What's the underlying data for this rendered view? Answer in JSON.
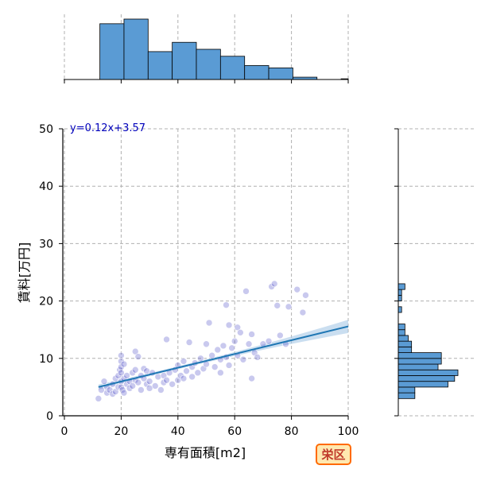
{
  "chart_data": {
    "type": "scatter",
    "xlabel": "専有面積[m2]",
    "ylabel": "賃料[万円]",
    "xlim": [
      0,
      100
    ],
    "ylim": [
      0,
      50
    ],
    "xticks": [
      "0",
      "20",
      "40",
      "60",
      "80",
      "100"
    ],
    "yticks": [
      "0",
      "10",
      "20",
      "30",
      "40",
      "50"
    ],
    "grid": true,
    "annotation": "y=0.12x+3.57",
    "badge": "栄区",
    "regression": {
      "slope": 0.12,
      "intercept": 3.57,
      "x_range": [
        12,
        100
      ]
    },
    "colors": {
      "point": "#4b4bc8",
      "line": "#1f77b4",
      "band": "#a6c8e6",
      "hist_fill": "#5a9bd4",
      "hist_edge": "#000000",
      "badge_fill": "#ffe8b0",
      "badge_edge": "#ff6a00"
    },
    "points": [
      [
        12,
        3
      ],
      [
        13,
        4.5
      ],
      [
        14,
        6
      ],
      [
        15,
        4
      ],
      [
        15,
        5
      ],
      [
        16,
        4.5
      ],
      [
        17,
        3.8
      ],
      [
        17,
        5.5
      ],
      [
        18,
        4.2
      ],
      [
        18,
        6.5
      ],
      [
        19,
        5
      ],
      [
        19,
        7
      ],
      [
        19.5,
        8
      ],
      [
        20,
        10.5
      ],
      [
        20,
        9.5
      ],
      [
        20,
        8.5
      ],
      [
        20,
        7.5
      ],
      [
        20,
        6
      ],
      [
        20,
        5
      ],
      [
        20.5,
        4.5
      ],
      [
        21,
        9
      ],
      [
        21,
        6.5
      ],
      [
        21,
        4
      ],
      [
        22,
        7
      ],
      [
        22,
        5.5
      ],
      [
        23,
        6
      ],
      [
        23,
        4.8
      ],
      [
        24,
        7.5
      ],
      [
        24,
        5.2
      ],
      [
        25,
        11.2
      ],
      [
        25,
        8
      ],
      [
        25,
        6.2
      ],
      [
        26,
        10.3
      ],
      [
        26,
        5.8
      ],
      [
        27,
        7
      ],
      [
        27,
        4.5
      ],
      [
        28,
        6.5
      ],
      [
        28,
        8.2
      ],
      [
        29,
        5.5
      ],
      [
        29,
        7.8
      ],
      [
        30,
        6
      ],
      [
        30,
        4.8
      ],
      [
        31,
        7.5
      ],
      [
        32,
        5.2
      ],
      [
        33,
        6.8
      ],
      [
        34,
        4.5
      ],
      [
        35,
        7
      ],
      [
        35,
        5.8
      ],
      [
        36,
        13.3
      ],
      [
        36,
        6.2
      ],
      [
        37,
        7.5
      ],
      [
        38,
        5.5
      ],
      [
        39,
        8
      ],
      [
        40,
        6.2
      ],
      [
        40,
        8.8
      ],
      [
        41,
        7
      ],
      [
        42,
        9.5
      ],
      [
        42,
        6.5
      ],
      [
        43,
        7.8
      ],
      [
        44,
        12.8
      ],
      [
        45,
        8.5
      ],
      [
        45,
        6.8
      ],
      [
        46,
        9.2
      ],
      [
        47,
        7.5
      ],
      [
        48,
        10
      ],
      [
        49,
        8.2
      ],
      [
        50,
        12.5
      ],
      [
        50,
        9
      ],
      [
        51,
        16.2
      ],
      [
        52,
        10.5
      ],
      [
        53,
        8.5
      ],
      [
        54,
        11.5
      ],
      [
        55,
        9.8
      ],
      [
        55,
        7.5
      ],
      [
        56,
        12.2
      ],
      [
        57,
        19.3
      ],
      [
        57,
        10.2
      ],
      [
        58,
        15.8
      ],
      [
        58,
        8.8
      ],
      [
        59,
        11.8
      ],
      [
        60,
        13
      ],
      [
        61,
        15.4
      ],
      [
        61,
        10.5
      ],
      [
        62,
        14.5
      ],
      [
        63,
        9.8
      ],
      [
        64,
        21.7
      ],
      [
        65,
        12.5
      ],
      [
        66,
        14.2
      ],
      [
        66,
        6.5
      ],
      [
        67,
        11
      ],
      [
        68,
        10.2
      ],
      [
        70,
        12.5
      ],
      [
        72,
        13
      ],
      [
        73,
        22.5
      ],
      [
        74,
        23
      ],
      [
        75,
        19.2
      ],
      [
        76,
        14
      ],
      [
        78,
        12.5
      ],
      [
        79,
        19
      ],
      [
        82,
        22
      ],
      [
        84,
        18
      ],
      [
        85,
        21
      ]
    ],
    "x_hist": {
      "bins": [
        [
          12.5,
          21
        ],
        [
          21,
          29.5
        ],
        [
          29.5,
          38
        ],
        [
          38,
          46.5
        ],
        [
          46.5,
          55
        ],
        [
          55,
          63.5
        ],
        [
          63.5,
          72
        ],
        [
          72,
          80.5
        ],
        [
          80.5,
          89
        ],
        [
          89,
          97.5
        ],
        [
          97.5,
          100
        ]
      ],
      "counts": [
        24,
        26,
        12,
        16,
        13,
        10,
        6,
        5,
        1,
        0,
        0.3
      ]
    },
    "y_hist": {
      "bins": [
        [
          3,
          4
        ],
        [
          4,
          5
        ],
        [
          5,
          6
        ],
        [
          6,
          7
        ],
        [
          7,
          8
        ],
        [
          8,
          9
        ],
        [
          9,
          10
        ],
        [
          10,
          11
        ],
        [
          11,
          12
        ],
        [
          12,
          13
        ],
        [
          13,
          14
        ],
        [
          14,
          15
        ],
        [
          15,
          16
        ],
        [
          16,
          17
        ],
        [
          17,
          18
        ],
        [
          18,
          19
        ],
        [
          19,
          20
        ],
        [
          20,
          21
        ],
        [
          21,
          22
        ],
        [
          22,
          23
        ]
      ],
      "counts": [
        5,
        5,
        15,
        17,
        18,
        12,
        13,
        13,
        4,
        4,
        3,
        2,
        2,
        0,
        0,
        1,
        0,
        1,
        1,
        2
      ]
    }
  }
}
